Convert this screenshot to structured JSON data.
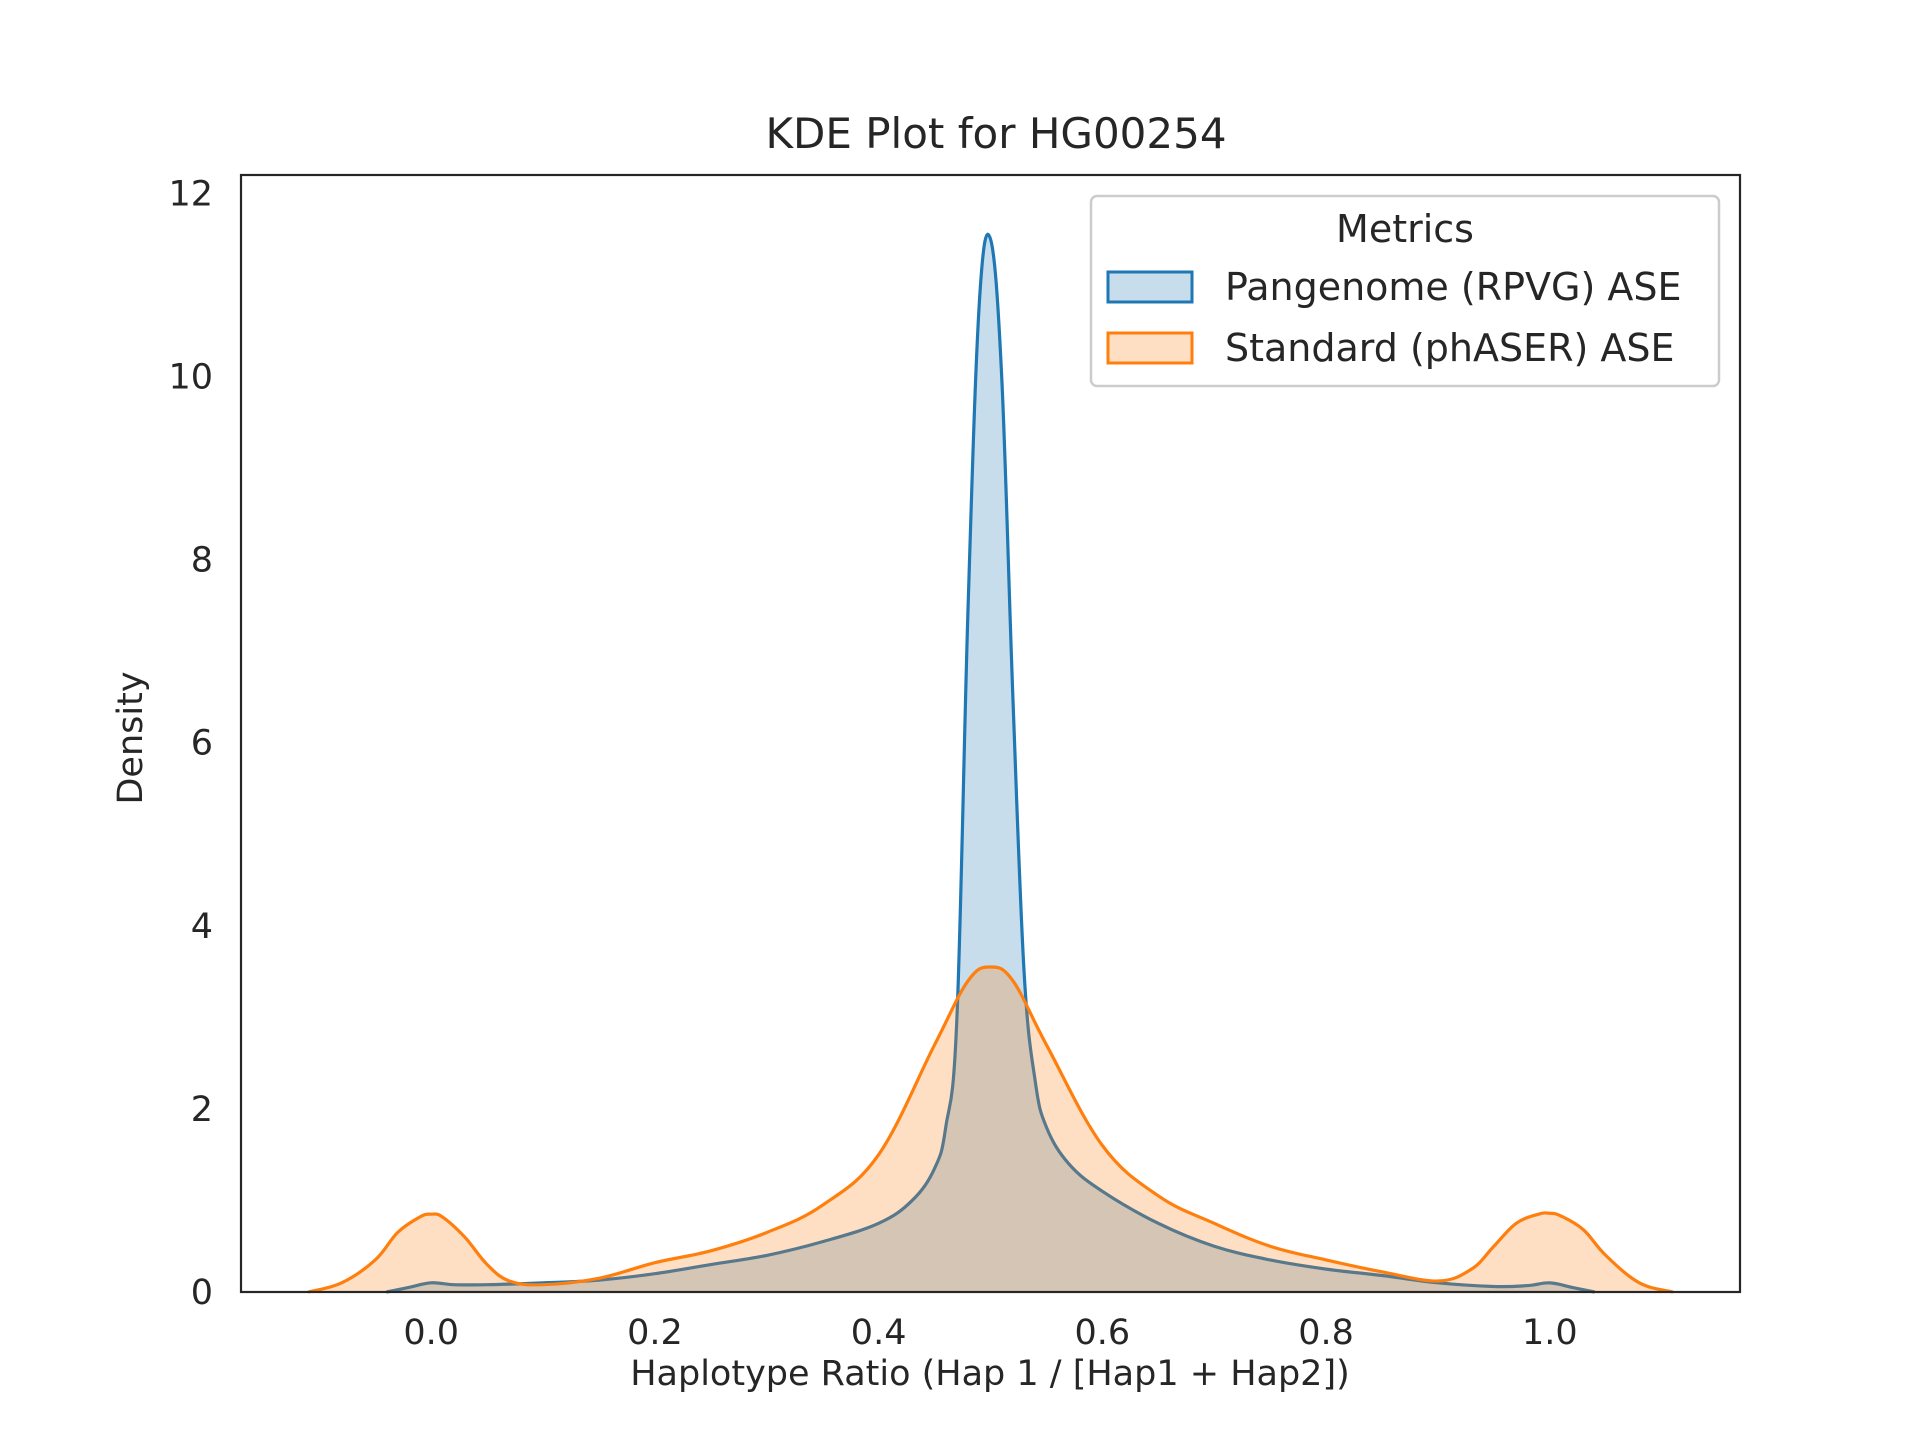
{
  "chart_data": {
    "type": "area",
    "title": "KDE Plot for HG00254",
    "xlabel": "Haplotype Ratio (Hap 1 / [Hap1 + Hap2])",
    "ylabel": "Density",
    "xlim": [
      -0.17,
      1.17
    ],
    "ylim": [
      0,
      12.2
    ],
    "xticks": [
      0.0,
      0.2,
      0.4,
      0.6,
      0.8,
      1.0
    ],
    "xtick_labels": [
      "0.0",
      "0.2",
      "0.4",
      "0.6",
      "0.8",
      "1.0"
    ],
    "yticks": [
      0,
      2,
      4,
      6,
      8,
      10,
      12
    ],
    "ytick_labels": [
      "0",
      "2",
      "4",
      "6",
      "8",
      "10",
      "12"
    ],
    "grid": false,
    "legend": {
      "title": "Metrics",
      "placement": "top-right"
    },
    "series": [
      {
        "name": "Pangenome (RPVG) ASE",
        "color": "#1f77b4",
        "x": [
          -0.04,
          -0.02,
          0.0,
          0.02,
          0.05,
          0.1,
          0.15,
          0.2,
          0.25,
          0.3,
          0.35,
          0.4,
          0.43,
          0.45,
          0.46,
          0.47,
          0.48,
          0.49,
          0.5,
          0.51,
          0.52,
          0.53,
          0.54,
          0.55,
          0.57,
          0.6,
          0.65,
          0.7,
          0.75,
          0.8,
          0.85,
          0.9,
          0.95,
          0.98,
          1.0,
          1.02,
          1.04
        ],
        "y": [
          0.0,
          0.05,
          0.1,
          0.08,
          0.08,
          0.1,
          0.13,
          0.2,
          0.3,
          0.4,
          0.55,
          0.75,
          1.0,
          1.35,
          1.8,
          3.0,
          7.5,
          10.8,
          11.5,
          10.0,
          6.5,
          3.5,
          2.3,
          1.8,
          1.4,
          1.1,
          0.75,
          0.5,
          0.35,
          0.25,
          0.18,
          0.1,
          0.06,
          0.07,
          0.1,
          0.05,
          0.0
        ]
      },
      {
        "name": "Standard (phASER) ASE",
        "color": "#ff7f0e",
        "x": [
          -0.11,
          -0.08,
          -0.05,
          -0.03,
          -0.01,
          0.0,
          0.01,
          0.03,
          0.05,
          0.07,
          0.1,
          0.15,
          0.2,
          0.25,
          0.3,
          0.35,
          0.4,
          0.45,
          0.48,
          0.5,
          0.52,
          0.55,
          0.6,
          0.65,
          0.7,
          0.75,
          0.8,
          0.85,
          0.9,
          0.93,
          0.95,
          0.97,
          0.99,
          1.0,
          1.01,
          1.03,
          1.05,
          1.08,
          1.11
        ],
        "y": [
          0.0,
          0.1,
          0.35,
          0.65,
          0.82,
          0.85,
          0.82,
          0.6,
          0.3,
          0.12,
          0.08,
          0.15,
          0.32,
          0.45,
          0.65,
          0.95,
          1.5,
          2.7,
          3.4,
          3.55,
          3.4,
          2.7,
          1.6,
          1.05,
          0.75,
          0.5,
          0.35,
          0.22,
          0.12,
          0.25,
          0.5,
          0.75,
          0.85,
          0.86,
          0.83,
          0.68,
          0.4,
          0.1,
          0.0
        ]
      }
    ]
  }
}
